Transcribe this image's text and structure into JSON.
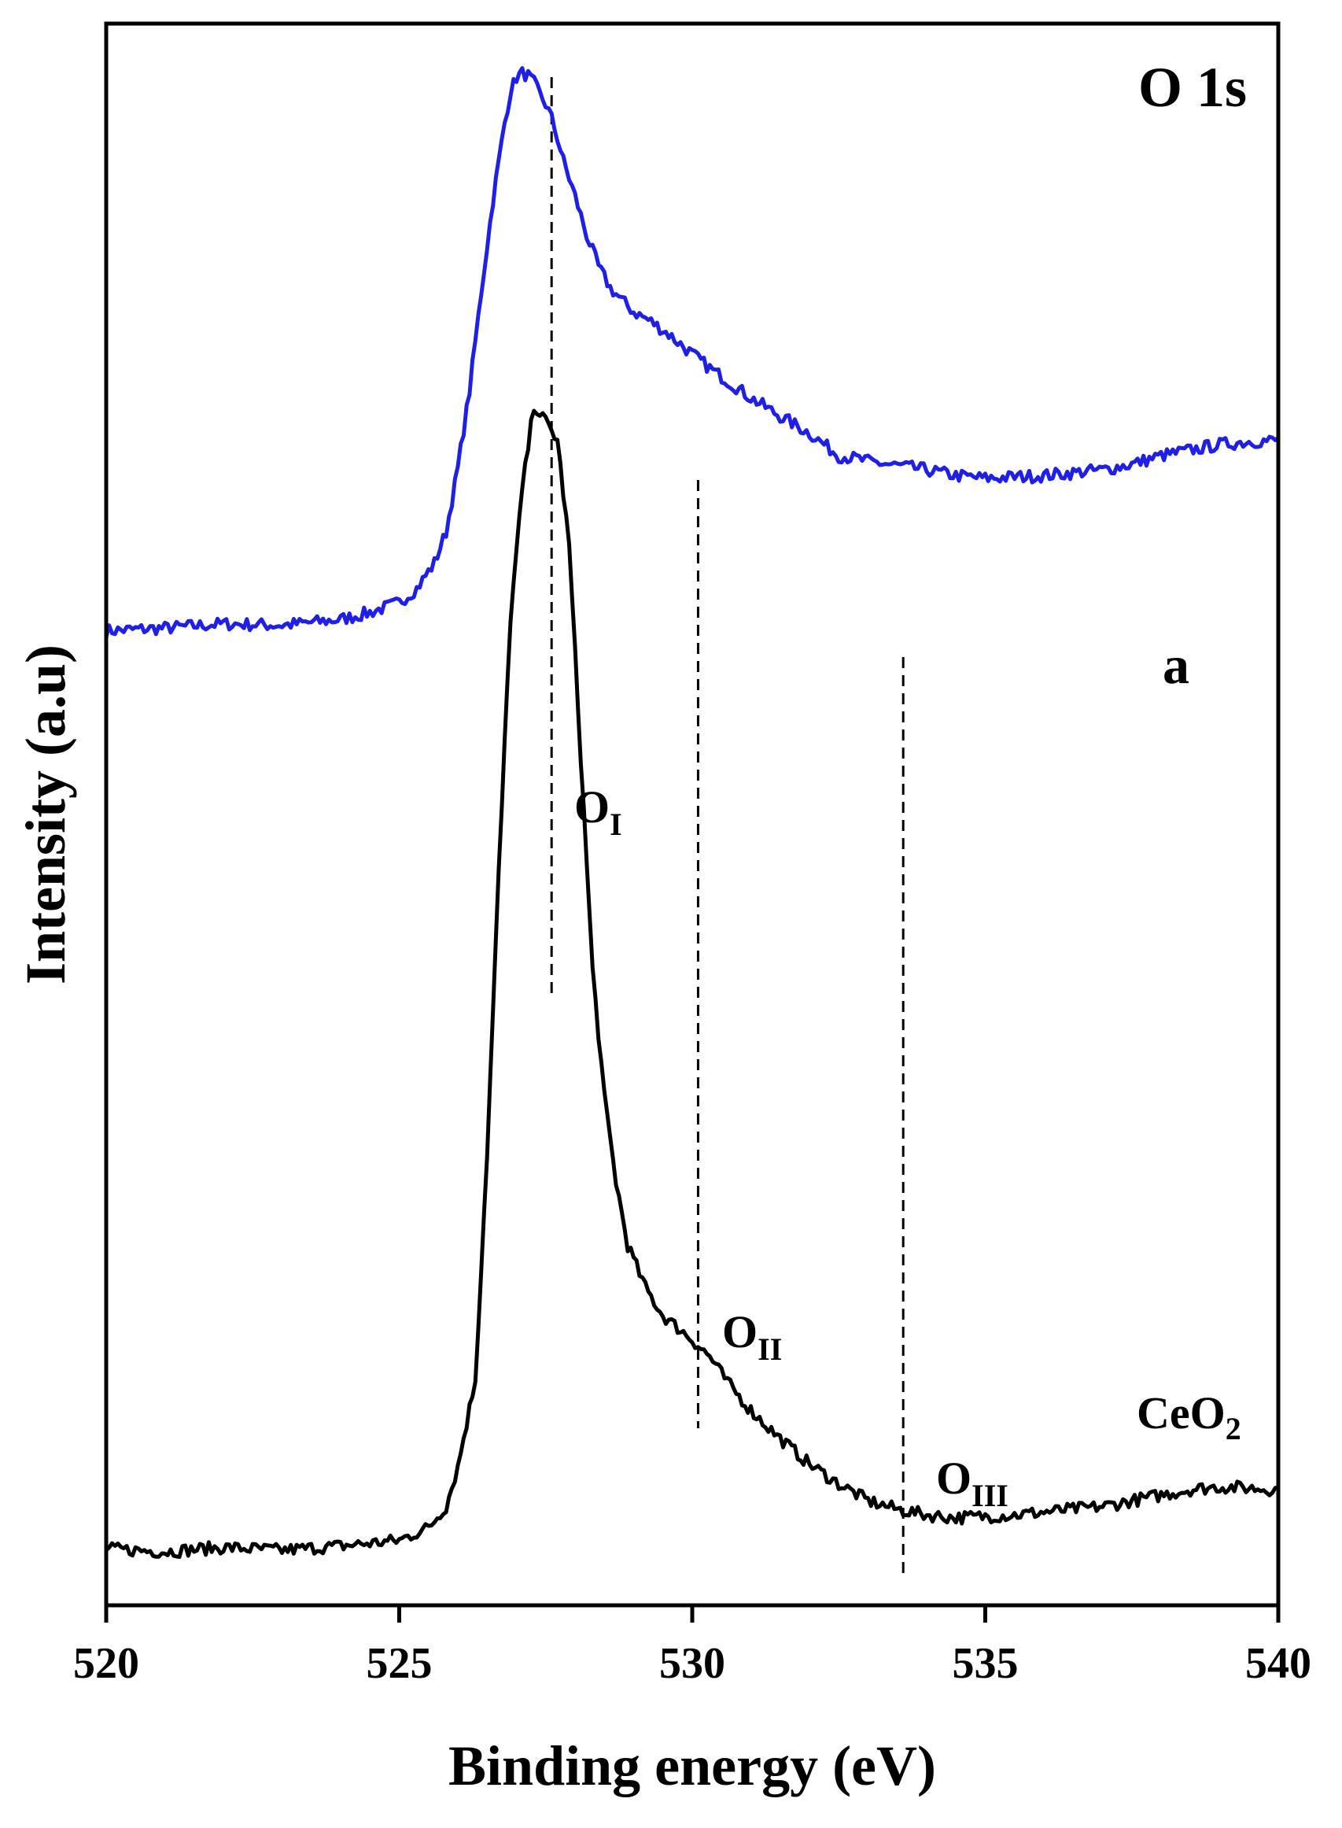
{
  "chart_data": {
    "type": "line",
    "title": "O 1s",
    "xlabel": "Binding energy (eV)",
    "ylabel": "Intensity (a.u)",
    "xlim": [
      520,
      540
    ],
    "xticks": [
      520,
      525,
      530,
      535,
      540
    ],
    "x_tick_labels": [
      "520",
      "525",
      "530",
      "535",
      "540"
    ],
    "y_ticks_shown": false,
    "grid": false,
    "colors": {
      "a": "#1f1fe6",
      "CeO2": "#000000",
      "axes": "#000000"
    },
    "series": [
      {
        "name": "a",
        "label_text": "a",
        "color": "#1f1fe6",
        "x": [
          520.0,
          521.0,
          522.0,
          523.0,
          524.0,
          524.5,
          525.0,
          525.3,
          525.6,
          525.8,
          526.0,
          526.2,
          526.4,
          526.6,
          526.8,
          526.9,
          527.0,
          527.1,
          527.2,
          527.3,
          527.4,
          527.5,
          527.6,
          527.7,
          527.8,
          528.0,
          528.2,
          528.4,
          528.6,
          528.8,
          529.0,
          529.3,
          529.6,
          530.0,
          530.3,
          530.7,
          531.0,
          531.5,
          532.0,
          532.5,
          532.8,
          533.0,
          533.5,
          534.0,
          534.5,
          535.0,
          535.5,
          536.0,
          536.5,
          537.0,
          537.5,
          538.0,
          538.5,
          539.0,
          539.5,
          540.0
        ],
        "y": [
          69.0,
          69.2,
          69.5,
          69.4,
          69.8,
          70.3,
          71.0,
          72.0,
          73.8,
          76.0,
          80.5,
          86.0,
          93.0,
          99.5,
          105.0,
          107.2,
          108.2,
          108.5,
          108.3,
          107.8,
          107.0,
          106.3,
          105.3,
          103.9,
          102.3,
          99.8,
          97.0,
          94.8,
          93.3,
          92.4,
          91.6,
          90.9,
          90.0,
          88.6,
          87.6,
          86.4,
          85.5,
          84.2,
          83.0,
          81.4,
          81.2,
          81.0,
          80.7,
          80.4,
          80.0,
          79.8,
          79.9,
          80.0,
          80.2,
          80.4,
          80.8,
          81.4,
          81.8,
          82.2,
          82.4,
          82.5
        ]
      },
      {
        "name": "CeO2",
        "label_text": "CeO",
        "label_sub": "2",
        "color": "#000000",
        "x": [
          520.0,
          521.0,
          522.0,
          523.0,
          524.0,
          525.0,
          525.5,
          525.8,
          526.0,
          526.3,
          526.5,
          526.7,
          526.9,
          527.1,
          527.3,
          527.5,
          527.7,
          527.9,
          528.1,
          528.3,
          528.5,
          528.7,
          528.9,
          529.2,
          529.5,
          529.8,
          530.0,
          530.3,
          530.6,
          531.0,
          531.5,
          532.0,
          532.5,
          533.0,
          533.5,
          534.0,
          534.5,
          535.0,
          535.5,
          536.0,
          536.5,
          537.0,
          537.5,
          538.0,
          538.5,
          539.0,
          539.5,
          540.0
        ],
        "y": [
          4.0,
          3.8,
          4.1,
          3.9,
          4.2,
          4.6,
          5.5,
          7.0,
          9.8,
          16.0,
          32.0,
          52.0,
          70.0,
          79.0,
          85.0,
          83.8,
          82.5,
          75.0,
          60.0,
          45.0,
          36.0,
          30.0,
          25.5,
          22.5,
          20.5,
          19.5,
          18.8,
          17.6,
          15.8,
          13.8,
          11.8,
          10.0,
          8.6,
          7.4,
          6.8,
          6.4,
          6.2,
          6.3,
          6.4,
          6.6,
          6.8,
          7.0,
          7.4,
          7.8,
          8.2,
          8.4,
          8.3,
          8.2
        ]
      }
    ],
    "reference_lines": [
      {
        "x": 527.6,
        "label": "O",
        "label_sub": "I"
      },
      {
        "x": 530.1,
        "label": "O",
        "label_sub": "II"
      },
      {
        "x": 533.6,
        "label": "O",
        "label_sub": "III"
      }
    ]
  }
}
